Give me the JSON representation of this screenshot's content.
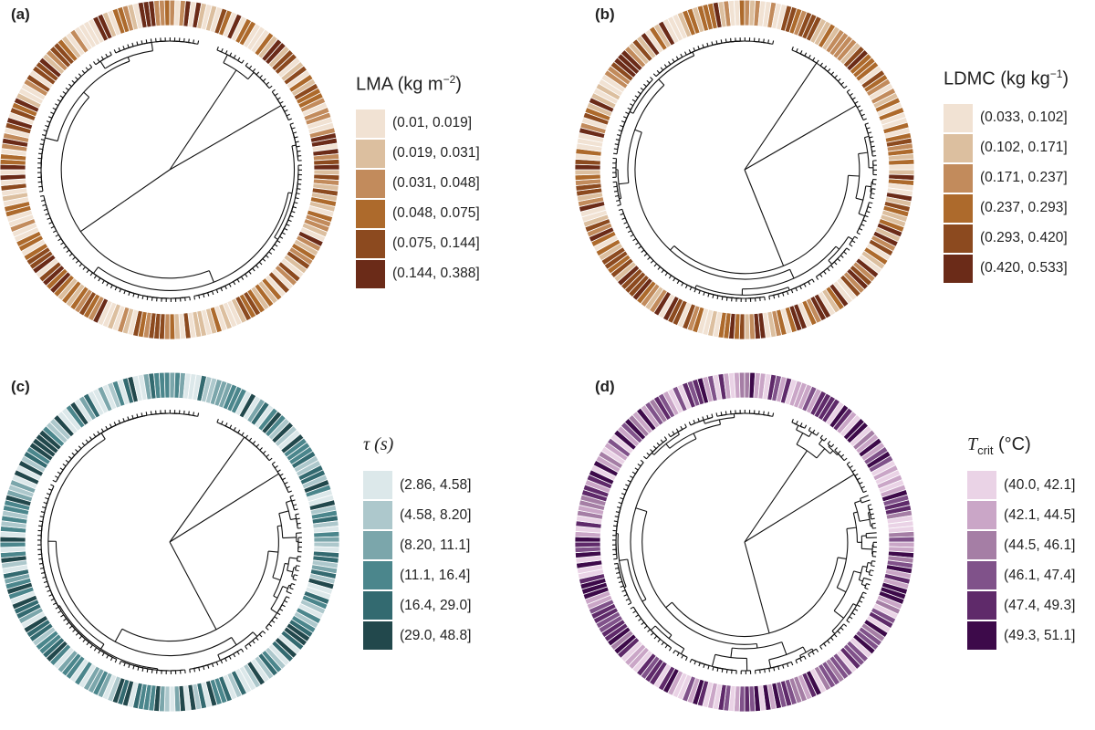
{
  "chart_data": [
    {
      "type": "circular-phylogeny-heatmap",
      "panel_label": "(a)",
      "legend_title": "LMA (kg m⁻²)",
      "legend_title_parts": {
        "main": "LMA (kg m",
        "sup": "−2",
        "end": ")"
      },
      "bins": [
        "(0.01, 0.019]",
        "(0.019, 0.031]",
        "(0.031, 0.048]",
        "(0.048, 0.075]",
        "(0.075, 0.144]",
        "(0.144, 0.388]"
      ],
      "colors": [
        "#f1e2d3",
        "#dcbf9f",
        "#c28b5c",
        "#ad6a2c",
        "#8c4a1f",
        "#6b2b18"
      ]
    },
    {
      "type": "circular-phylogeny-heatmap",
      "panel_label": "(b)",
      "legend_title": "LDMC (kg kg⁻¹)",
      "legend_title_parts": {
        "main": "LDMC (kg kg",
        "sup": "−1",
        "end": ")"
      },
      "bins": [
        "(0.033, 0.102]",
        "(0.102, 0.171]",
        "(0.171, 0.237]",
        "(0.237, 0.293]",
        "(0.293, 0.420]",
        "(0.420, 0.533]"
      ],
      "colors": [
        "#f1e2d3",
        "#dcbf9f",
        "#c28b5c",
        "#ad6a2c",
        "#8c4a1f",
        "#6b2b18"
      ]
    },
    {
      "type": "circular-phylogeny-heatmap",
      "panel_label": "(c)",
      "legend_title": "τ (s)",
      "legend_title_parts": {
        "main": "τ (",
        "sub_ital": "s",
        "end": ")"
      },
      "bins": [
        "(2.86, 4.58]",
        "(4.58, 8.20]",
        "(8.20, 11.1]",
        "(11.1, 16.4]",
        "(16.4, 29.0]",
        "(29.0, 48.8]"
      ],
      "colors": [
        "#dce8ea",
        "#adc8cc",
        "#7ba6ab",
        "#4b868c",
        "#336a70",
        "#22484c"
      ]
    },
    {
      "type": "circular-phylogeny-heatmap",
      "panel_label": "(d)",
      "legend_title": "Tcrit (°C)",
      "legend_title_parts": {
        "main": "T",
        "sub": "crit",
        "end": " (°C)"
      },
      "bins": [
        "(40.0, 42.1]",
        "(42.1, 44.5]",
        "(44.5, 46.1]",
        "(46.1, 47.4]",
        "(47.4, 49.3]",
        "(49.3, 51.1]"
      ],
      "colors": [
        "#ead3e6",
        "#caa6c7",
        "#a57ea5",
        "#80528a",
        "#5f2a6a",
        "#3d0a4a"
      ]
    }
  ]
}
